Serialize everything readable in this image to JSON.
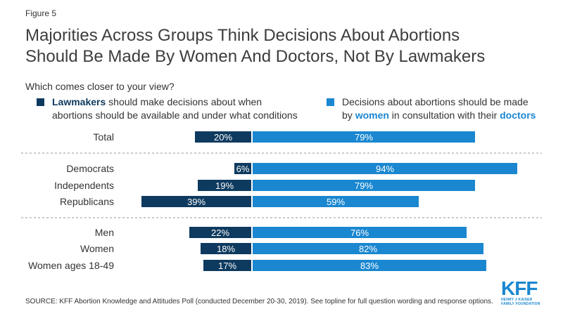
{
  "figure_label": "Figure 5",
  "title_lines": [
    "Majorities Across Groups Think Decisions About Abortions",
    "Should Be Made By Women And Doctors, Not By Lawmakers"
  ],
  "question": "Which comes closer to your view?",
  "legend": {
    "left": {
      "color": "#0e3a5f",
      "highlight": "Lawmakers",
      "line1_rest": " should make decisions about when",
      "line2": "abortions should be available and under what conditions"
    },
    "right": {
      "color": "#1a87d0",
      "line1": "Decisions about abortions should be made",
      "line2_pre": "by ",
      "line2_hl1": "women",
      "line2_mid": " in consultation with their ",
      "line2_hl2": "doctors"
    }
  },
  "chart_data": {
    "type": "bar",
    "orientation": "horizontal",
    "layout": "diverging",
    "categories": [
      "Total",
      "Democrats",
      "Independents",
      "Republicans",
      "Men",
      "Women",
      "Women ages 18-49"
    ],
    "groups": [
      [
        0
      ],
      [
        1,
        2,
        3
      ],
      [
        4,
        5,
        6
      ]
    ],
    "series": [
      {
        "name": "Lawmakers should make decisions about when abortions should be available and under what conditions",
        "color": "#0e3a5f",
        "values": [
          20,
          6,
          19,
          39,
          22,
          18,
          17
        ]
      },
      {
        "name": "Decisions about abortions should be made by women in consultation with their doctors",
        "color": "#1a87d0",
        "values": [
          79,
          94,
          79,
          59,
          76,
          82,
          83
        ]
      }
    ],
    "value_suffix": "%",
    "grid": false
  },
  "source": "SOURCE: KFF Abortion Knowledge and Attitudes Poll (conducted December 20-30, 2019). See topline for full question wording and response options.",
  "logo": {
    "text": "KFF",
    "sub_line1": "HENRY J KAISER",
    "sub_line2": "FAMILY FOUNDATION"
  }
}
